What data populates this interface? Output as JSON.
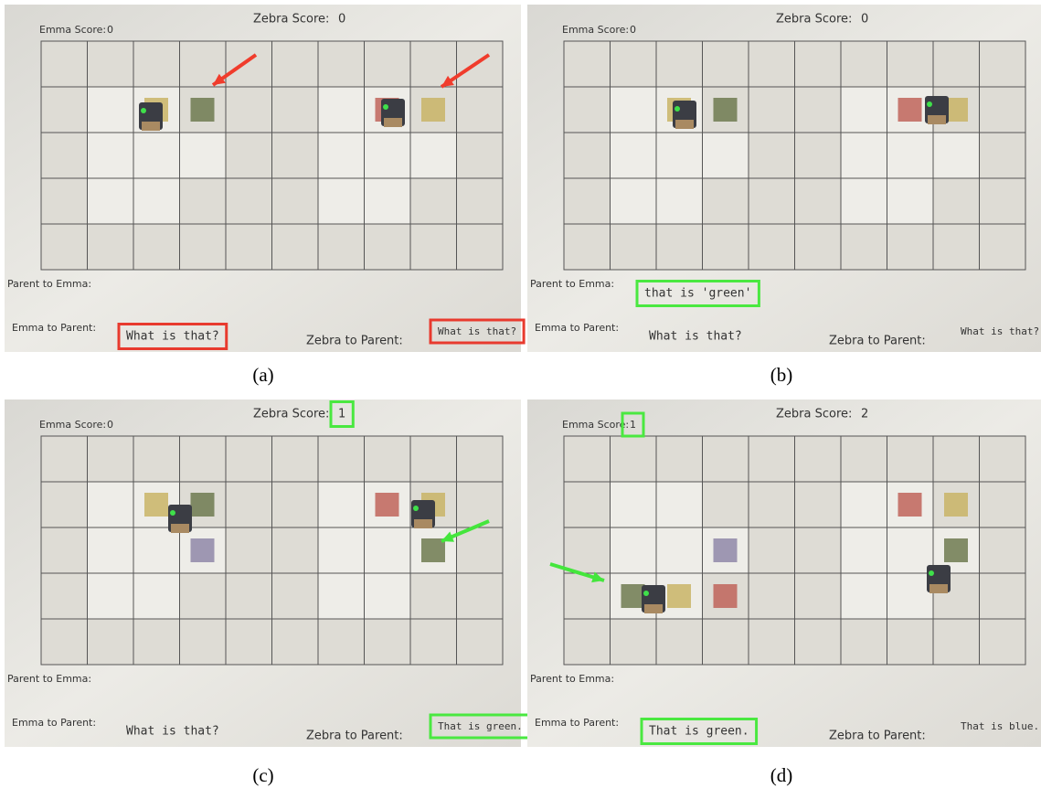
{
  "panels": [
    {
      "caption": "(a)",
      "emma_score_label": "Emma Score:",
      "emma_score": 0,
      "zebra_score_label": "Zebra Score:",
      "zebra_score": 0,
      "parent_to_emma_label": "Parent to Emma:",
      "emma_to_parent_label": "Emma to Parent:",
      "emma_to_parent": "What is that?",
      "zebra_to_parent_label": "Zebra to Parent:",
      "zebra_to_parent": "What is that?"
    },
    {
      "caption": "(b)",
      "emma_score_label": "Emma Score:",
      "emma_score": 0,
      "zebra_score_label": "Zebra Score:",
      "zebra_score": 0,
      "parent_to_emma_label": "Parent to Emma:",
      "parent_to_emma": "that is 'green'",
      "emma_to_parent_label": "Emma to Parent:",
      "emma_to_parent": "What is that?",
      "zebra_to_parent_label": "Zebra to Parent:",
      "zebra_to_parent": "What is that?"
    },
    {
      "caption": "(c)",
      "emma_score_label": "Emma Score:",
      "emma_score": 0,
      "zebra_score_label": "Zebra Score:",
      "zebra_score": 1,
      "parent_to_emma_label": "Parent to Emma:",
      "emma_to_parent_label": "Emma to Parent:",
      "emma_to_parent": "What is that?",
      "zebra_to_parent_label": "Zebra to Parent:",
      "zebra_to_parent": "That is green."
    },
    {
      "caption": "(d)",
      "emma_score_label": "Emma Score:",
      "emma_score": 1,
      "zebra_score_label": "Zebra Score:",
      "zebra_score": 2,
      "parent_to_emma_label": "Parent to Emma:",
      "emma_to_parent_label": "Emma to Parent:",
      "emma_to_parent": "That is green.",
      "zebra_to_parent_label": "Zebra to Parent:",
      "zebra_to_parent": "That is blue."
    }
  ]
}
